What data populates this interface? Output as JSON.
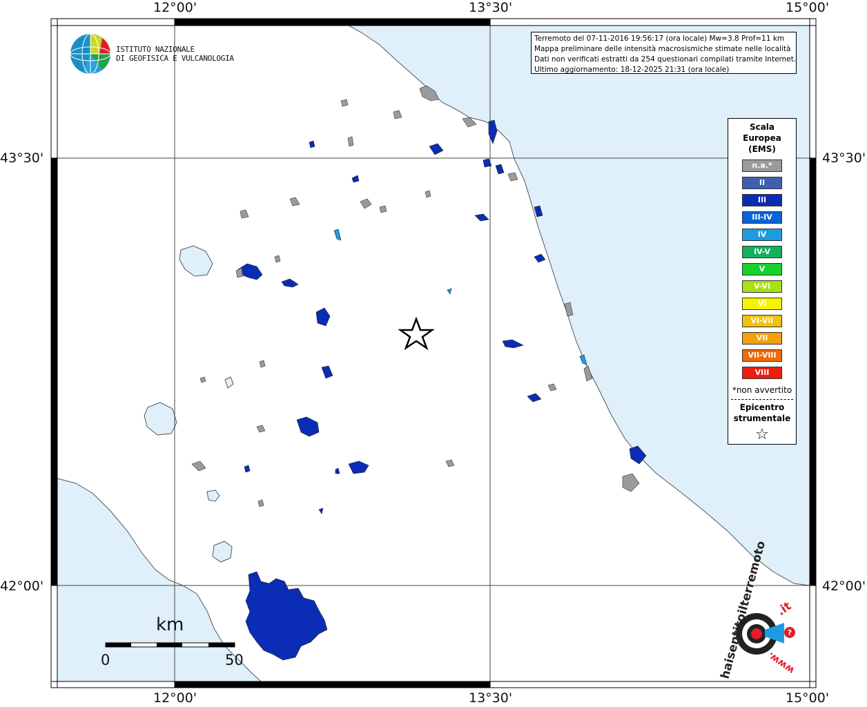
{
  "info": {
    "line1": "Terremoto del 07-11-2016 19:56:17 (ora locale) Mw=3.8 Prof=11 km",
    "line2": "Mappa preliminare delle intensità macrosismiche stimate nelle località",
    "line3": "Dati non verificati estratti da 254 questionari compilati tramite Internet.",
    "line4": "Ultimo aggiornamento: 18-12-2025 21:31 (ora locale)"
  },
  "logo": {
    "line1": "ISTITUTO NAZIONALE",
    "line2": "DI GEOFISICA E VULCANOLOGIA"
  },
  "coords": {
    "top": [
      "12°00'",
      "13°30'",
      "15°00'"
    ],
    "bottom": [
      "12°00'",
      "13°30'",
      "15°00'"
    ],
    "left": [
      "43°30'",
      "42°00'"
    ],
    "right": [
      "43°30'",
      "42°00'"
    ]
  },
  "legend": {
    "title1": "Scala",
    "title2": "Europea",
    "title3": "(EMS)",
    "items": [
      {
        "label": "n.a.*",
        "color": "#9b9b9b"
      },
      {
        "label": "II",
        "color": "#3f5fb0"
      },
      {
        "label": "III",
        "color": "#0b2db5"
      },
      {
        "label": "III-IV",
        "color": "#0a63d6"
      },
      {
        "label": "IV",
        "color": "#1e9be0"
      },
      {
        "label": "IV-V",
        "color": "#14b05a"
      },
      {
        "label": "V",
        "color": "#17d12d"
      },
      {
        "label": "V-VI",
        "color": "#a8e014"
      },
      {
        "label": "VI",
        "color": "#f4f400"
      },
      {
        "label": "VI-VII",
        "color": "#f2c20a"
      },
      {
        "label": "VII",
        "color": "#f5a00a"
      },
      {
        "label": "VII-VIII",
        "color": "#f06a0a"
      },
      {
        "label": "VIII",
        "color": "#ee1c0c"
      }
    ],
    "note": "*non avvertito",
    "epi1": "Epicentro",
    "epi2": "strumentale",
    "star": "☆"
  },
  "scale": {
    "unit": "km",
    "min": "0",
    "max": "50"
  },
  "stamp": {
    "text1": "haisentitoilterremoto",
    "text2": ".it",
    "text3": "www."
  },
  "colors": {
    "sea": "#dff0fb",
    "land": "#ffffff",
    "intensity_III": "#0b2db5",
    "na": "#9b9b9b"
  }
}
